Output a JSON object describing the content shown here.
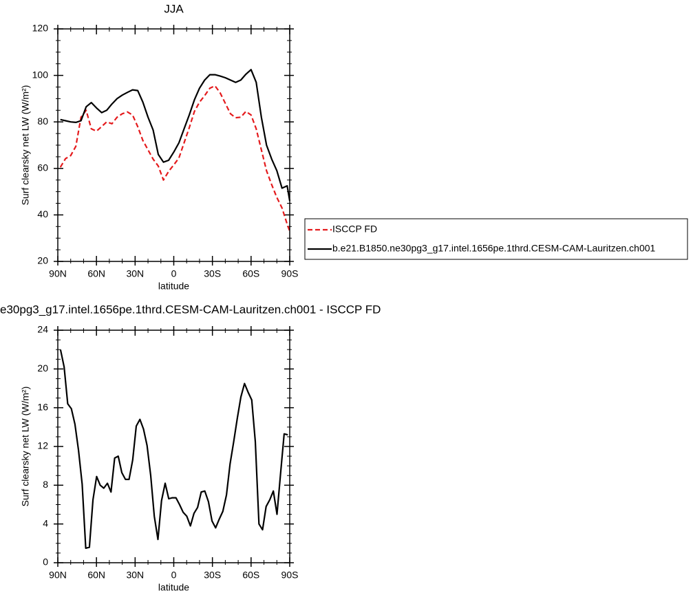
{
  "chart_data": [
    {
      "type": "line",
      "title": "JJA",
      "xlabel": "latitude",
      "ylabel": "Surf clearsky net LW (W/m²)",
      "x": [
        88,
        84,
        80,
        76,
        72,
        68,
        64,
        60,
        56,
        52,
        48,
        44,
        40,
        36,
        32,
        28,
        24,
        20,
        16,
        12,
        8,
        4,
        0,
        -4,
        -8,
        -12,
        -16,
        -20,
        -24,
        -28,
        -32,
        -36,
        -40,
        -44,
        -48,
        -52,
        -56,
        -60,
        -64,
        -68,
        -72,
        -76,
        -80,
        -84,
        -88,
        -90
      ],
      "series": [
        {
          "name": "ISCCP FD",
          "color": "#e41a1c",
          "dash": true,
          "values": [
            60.5,
            64.2,
            65.5,
            69.5,
            82,
            85,
            77,
            76,
            78,
            80,
            79.2,
            82,
            83.5,
            84.3,
            83,
            78,
            72,
            68,
            64,
            61,
            55,
            58.7,
            61.5,
            64.5,
            71,
            77.5,
            84.5,
            88.5,
            91.3,
            94.5,
            95.5,
            92.5,
            88,
            83.5,
            81.8,
            82,
            84.5,
            83,
            77,
            68,
            59,
            53,
            47.5,
            43,
            36,
            33
          ]
        },
        {
          "name": "b.e21.B1850.ne30pg3_g17.intel.1656pe.1thrd.CESM-CAM-Lauritzen.ch001",
          "color": "#000000",
          "dash": false,
          "values": [
            81,
            80.5,
            80,
            79.8,
            80.5,
            86.5,
            88.3,
            86,
            84,
            85,
            87.7,
            90,
            91.5,
            92.7,
            93.8,
            93.5,
            88.5,
            82,
            76.5,
            66,
            62.7,
            63.5,
            67,
            71,
            77,
            83,
            89.5,
            94.5,
            98,
            100.3,
            100.3,
            99.7,
            99,
            98,
            97,
            98,
            100.5,
            102.5,
            97,
            82,
            70,
            64,
            59,
            51.5,
            52.5,
            46
          ]
        }
      ],
      "xlim": [
        90,
        -90
      ],
      "xticks": [
        {
          "value": 90,
          "label": "90N"
        },
        {
          "value": 60,
          "label": "60N"
        },
        {
          "value": 30,
          "label": "30N"
        },
        0,
        {
          "value": -30,
          "label": "30S"
        },
        {
          "value": -60,
          "label": "60S"
        },
        {
          "value": -90,
          "label": "90S"
        }
      ],
      "ylim": [
        20,
        120
      ],
      "yticks": [
        20,
        40,
        60,
        80,
        100,
        120
      ],
      "legend": "right"
    },
    {
      "type": "line",
      "title": "e30pg3_g17.intel.1656pe.1thrd.CESM-CAM-Lauritzen.ch001 - ISCCP FD",
      "xlabel": "latitude",
      "ylabel": "Surf clearsky net LW (W/m²)",
      "x": [
        87.9,
        85.1,
        82.3,
        79.5,
        76.7,
        73.9,
        71.1,
        68.3,
        65.5,
        62.7,
        59.9,
        57.1,
        54.3,
        51.5,
        48.7,
        45.9,
        43.1,
        40.3,
        37.5,
        34.7,
        31.9,
        29.1,
        26.3,
        23.5,
        20.7,
        17.9,
        15.1,
        12.3,
        9.5,
        6.7,
        3.9,
        1.1,
        -1.7,
        -4.5,
        -7.3,
        -10.1,
        -12.9,
        -15.7,
        -18.5,
        -21.3,
        -24.1,
        -26.9,
        -29.7,
        -32.5,
        -35.3,
        -38.1,
        -40.9,
        -43.7,
        -46.5,
        -49.3,
        -52.1,
        -54.9,
        -57.7,
        -60.5,
        -63.3,
        -66.1,
        -68.9,
        -71.7,
        -74.5,
        -77.3,
        -80.1,
        -82.9,
        -85.7,
        -88.5
      ],
      "series": [
        {
          "color": "#000000",
          "dash": false,
          "values": [
            22.0,
            20.2,
            16.4,
            15.9,
            14.3,
            11.6,
            8.1,
            1.5,
            1.6,
            6.5,
            8.9,
            8.0,
            7.7,
            8.2,
            7.3,
            10.8,
            11.0,
            9.3,
            8.6,
            8.6,
            10.6,
            14.1,
            14.8,
            13.8,
            12.1,
            9.0,
            4.8,
            2.4,
            6.4,
            8.2,
            6.6,
            6.7,
            6.7,
            6.0,
            5.2,
            4.8,
            3.8,
            5.1,
            5.7,
            7.3,
            7.4,
            6.3,
            4.3,
            3.6,
            4.5,
            5.3,
            7.0,
            10.2,
            12.5,
            14.9,
            17.1,
            18.5,
            17.6,
            16.8,
            12.5,
            4.0,
            3.4,
            5.8,
            6.5,
            7.4,
            5.0,
            9.2,
            13.3,
            13.2
          ]
        }
      ],
      "xlim": [
        90,
        -90
      ],
      "xticks": [
        {
          "value": 90,
          "label": "90N"
        },
        {
          "value": 60,
          "label": "60N"
        },
        {
          "value": 30,
          "label": "30N"
        },
        0,
        {
          "value": -30,
          "label": "30S"
        },
        {
          "value": -60,
          "label": "60S"
        },
        {
          "value": -90,
          "label": "90S"
        }
      ],
      "ylim": [
        0,
        24
      ],
      "yticks": [
        0,
        4,
        8,
        12,
        16,
        20,
        24
      ]
    }
  ]
}
